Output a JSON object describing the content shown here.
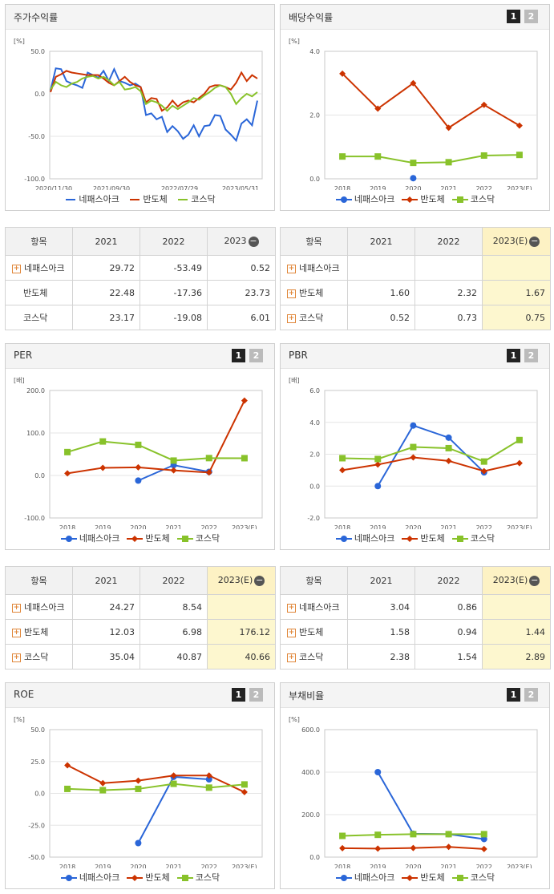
{
  "colors": {
    "s1": "#2a66d8",
    "s2": "#cc3300",
    "s3": "#88c22a"
  },
  "legend": [
    "네패스아크",
    "반도체",
    "코스닥"
  ],
  "panels": {
    "stock": {
      "title": "주가수익률"
    },
    "div": {
      "title": "배당수익률",
      "b1": "1",
      "b2": "2"
    },
    "per": {
      "title": "PER",
      "b1": "1",
      "b2": "2"
    },
    "pbr": {
      "title": "PBR",
      "b1": "1",
      "b2": "2"
    },
    "roe": {
      "title": "ROE",
      "b1": "1",
      "b2": "2"
    },
    "debt": {
      "title": "부채비율",
      "b1": "1",
      "b2": "2"
    }
  },
  "tables": {
    "stock": {
      "header": [
        "항목",
        "2021",
        "2022",
        "2023"
      ],
      "header_minus": "−",
      "rows": [
        {
          "name": "네패스아크",
          "plus": true,
          "values": [
            "29.72",
            "-53.49",
            "0.52"
          ]
        },
        {
          "name": "반도체",
          "plus": false,
          "values": [
            "22.48",
            "-17.36",
            "23.73"
          ]
        },
        {
          "name": "코스닥",
          "plus": false,
          "values": [
            "23.17",
            "-19.08",
            "6.01"
          ]
        }
      ]
    },
    "div": {
      "header": [
        "항목",
        "2021",
        "2022",
        "2023(E)"
      ],
      "header_minus": "−",
      "rows": [
        {
          "name": "네패스아크",
          "plus": true,
          "values": [
            "",
            "",
            ""
          ]
        },
        {
          "name": "반도체",
          "plus": true,
          "values": [
            "1.60",
            "2.32",
            "1.67"
          ]
        },
        {
          "name": "코스닥",
          "plus": true,
          "values": [
            "0.52",
            "0.73",
            "0.75"
          ]
        }
      ]
    },
    "per": {
      "header": [
        "항목",
        "2021",
        "2022",
        "2023(E)"
      ],
      "header_minus": "−",
      "rows": [
        {
          "name": "네패스아크",
          "plus": true,
          "values": [
            "24.27",
            "8.54",
            ""
          ]
        },
        {
          "name": "반도체",
          "plus": true,
          "values": [
            "12.03",
            "6.98",
            "176.12"
          ]
        },
        {
          "name": "코스닥",
          "plus": true,
          "values": [
            "35.04",
            "40.87",
            "40.66"
          ]
        }
      ]
    },
    "pbr": {
      "header": [
        "항목",
        "2021",
        "2022",
        "2023(E)"
      ],
      "header_minus": "−",
      "rows": [
        {
          "name": "네패스아크",
          "plus": true,
          "values": [
            "3.04",
            "0.86",
            ""
          ]
        },
        {
          "name": "반도체",
          "plus": true,
          "values": [
            "1.58",
            "0.94",
            "1.44"
          ]
        },
        {
          "name": "코스닥",
          "plus": true,
          "values": [
            "2.38",
            "1.54",
            "2.89"
          ]
        }
      ]
    }
  },
  "chart_data": [
    {
      "id": "stock",
      "type": "line",
      "ylabel": "[%]",
      "ylim": [
        -100,
        50
      ],
      "yticks": [
        "50.0",
        "0.0",
        "-50.0",
        "-100.0"
      ],
      "xticks": [
        "2020/11/30",
        "2021/09/30",
        "2022/07/29",
        "2023/05/31"
      ],
      "series": [
        {
          "name": "네패스아크",
          "values": [
            4,
            30,
            29,
            15,
            12,
            10,
            7,
            25,
            22,
            19,
            27,
            15,
            29,
            15,
            13,
            10,
            12,
            8,
            -25,
            -23,
            -30,
            -27,
            -45,
            -38,
            -44,
            -53,
            -48,
            -37,
            -50,
            -38,
            -37,
            -25,
            -26,
            -42,
            -48,
            -55,
            -35,
            -30,
            -37,
            -8
          ]
        },
        {
          "name": "반도체",
          "values": [
            2,
            20,
            23,
            27,
            25,
            24,
            23,
            22,
            22,
            22,
            18,
            13,
            10,
            15,
            20,
            14,
            10,
            8,
            -10,
            -5,
            -6,
            -20,
            -16,
            -8,
            -15,
            -10,
            -8,
            -10,
            -5,
            0,
            8,
            10,
            10,
            8,
            5,
            13,
            25,
            15,
            22,
            18
          ]
        },
        {
          "name": "코스닥",
          "values": [
            5,
            14,
            10,
            8,
            12,
            14,
            18,
            20,
            21,
            18,
            20,
            16,
            10,
            14,
            5,
            6,
            8,
            3,
            -12,
            -8,
            -10,
            -14,
            -20,
            -14,
            -18,
            -14,
            -10,
            -5,
            -7,
            -2,
            2,
            7,
            10,
            8,
            0,
            -12,
            -5,
            0,
            -3,
            2
          ]
        }
      ]
    },
    {
      "id": "div",
      "type": "line",
      "ylabel": "[%]",
      "ylim": [
        0,
        4
      ],
      "yticks": [
        "4.0",
        "2.0",
        "0.0"
      ],
      "categories": [
        "2018",
        "2019",
        "2020",
        "2021",
        "2022",
        "2023(E)"
      ],
      "series": [
        {
          "name": "네패스아크",
          "values": [
            null,
            null,
            0.02,
            null,
            null,
            null
          ]
        },
        {
          "name": "반도체",
          "values": [
            3.3,
            2.2,
            3.0,
            1.6,
            2.32,
            1.67
          ]
        },
        {
          "name": "코스닥",
          "values": [
            0.7,
            0.7,
            0.5,
            0.52,
            0.73,
            0.75
          ]
        }
      ]
    },
    {
      "id": "per",
      "type": "line",
      "ylabel": "[배]",
      "ylim": [
        -100,
        200
      ],
      "yticks": [
        "200.0",
        "100.0",
        "0.0",
        "-100.0"
      ],
      "categories": [
        "2018",
        "2019",
        "2020",
        "2021",
        "2022",
        "2023(E)"
      ],
      "series": [
        {
          "name": "네패스아크",
          "values": [
            null,
            null,
            -12,
            24.27,
            8.54,
            null
          ]
        },
        {
          "name": "반도체",
          "values": [
            5,
            18,
            19,
            12.03,
            6.98,
            176.12
          ]
        },
        {
          "name": "코스닥",
          "values": [
            55,
            80,
            72,
            35.04,
            40.87,
            40.66
          ]
        }
      ]
    },
    {
      "id": "pbr",
      "type": "line",
      "ylabel": "[배]",
      "ylim": [
        -2,
        6
      ],
      "yticks": [
        "6.0",
        "4.0",
        "2.0",
        "0.0",
        "-2.0"
      ],
      "categories": [
        "2018",
        "2019",
        "2020",
        "2021",
        "2022",
        "2023(E)"
      ],
      "series": [
        {
          "name": "네패스아크",
          "values": [
            null,
            0.0,
            3.8,
            3.04,
            0.86,
            null
          ]
        },
        {
          "name": "반도체",
          "values": [
            1.0,
            1.35,
            1.8,
            1.58,
            0.94,
            1.44
          ]
        },
        {
          "name": "코스닥",
          "values": [
            1.75,
            1.7,
            2.45,
            2.38,
            1.54,
            2.89
          ]
        }
      ]
    },
    {
      "id": "roe",
      "type": "line",
      "ylabel": "[%]",
      "ylim": [
        -50,
        50
      ],
      "yticks": [
        "50.0",
        "25.0",
        "0.0",
        "-25.0",
        "-50.0"
      ],
      "categories": [
        "2018",
        "2019",
        "2020",
        "2021",
        "2022",
        "2023(E)"
      ],
      "series": [
        {
          "name": "네패스아크",
          "values": [
            null,
            null,
            -39,
            13,
            11,
            null
          ]
        },
        {
          "name": "반도체",
          "values": [
            22,
            8,
            10,
            14,
            14,
            1
          ]
        },
        {
          "name": "코스닥",
          "values": [
            3.5,
            2.5,
            3.5,
            7.5,
            4.5,
            7
          ]
        }
      ]
    },
    {
      "id": "debt",
      "type": "line",
      "ylabel": "[%]",
      "ylim": [
        0,
        600
      ],
      "yticks": [
        "600.0",
        "400.0",
        "200.0",
        "0.0"
      ],
      "categories": [
        "2018",
        "2019",
        "2020",
        "2021",
        "2022",
        "2023(E)"
      ],
      "series": [
        {
          "name": "네패스아크",
          "values": [
            null,
            400,
            110,
            108,
            85,
            null
          ]
        },
        {
          "name": "반도체",
          "values": [
            42,
            40,
            43,
            48,
            38,
            null
          ]
        },
        {
          "name": "코스닥",
          "values": [
            100,
            105,
            108,
            108,
            108,
            null
          ]
        }
      ]
    }
  ]
}
